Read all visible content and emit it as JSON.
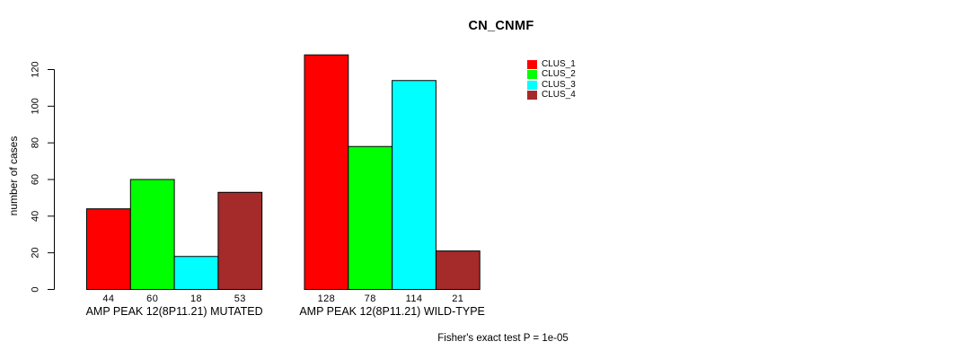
{
  "title": "CN_CNMF",
  "footer": "Fisher's exact test P = 1e-05",
  "chart_data": {
    "type": "bar",
    "grouped": true,
    "title": "CN_CNMF",
    "categories": [
      "AMP PEAK 12(8P11.21) MUTATED",
      "AMP PEAK 12(8P11.21) WILD-TYPE"
    ],
    "series": [
      {
        "name": "CLUS_1",
        "color": "#FF0000",
        "values": [
          44,
          128
        ]
      },
      {
        "name": "CLUS_2",
        "color": "#00FF00",
        "values": [
          60,
          78
        ]
      },
      {
        "name": "CLUS_3",
        "color": "#00FFFF",
        "values": [
          18,
          114
        ]
      },
      {
        "name": "CLUS_4",
        "color": "#A52A2A",
        "values": [
          53,
          21
        ]
      }
    ],
    "xlabel": "",
    "ylabel": "number of cases",
    "yticks": [
      0,
      20,
      40,
      60,
      80,
      100,
      120
    ],
    "ylim": [
      0,
      130
    ],
    "bar_value_labels_shown": true,
    "grid": false,
    "legend_position": "top-right",
    "background": "#FFFFFF",
    "annotation": "Fisher's exact test P = 1e-05"
  }
}
